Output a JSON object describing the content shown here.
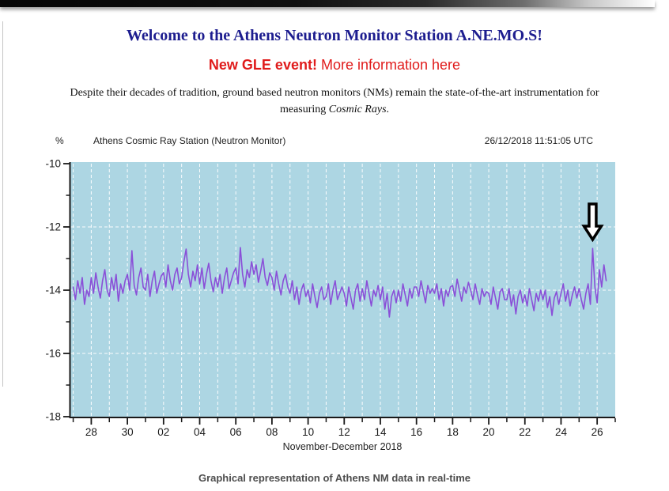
{
  "page": {
    "title": "Welcome to the Athens Neutron Monitor Station A.NE.MO.S!",
    "title_color": "#1d1d8f"
  },
  "gle": {
    "headline": "New GLE event!",
    "link_text": "More information here",
    "color": "#e01b1b"
  },
  "intro": {
    "line1": "Despite their decades of tradition, ground based neutron monitors (NMs) remain the state-of-the-art instrumentation for",
    "line2_prefix": "measuring ",
    "line2_italic": "Cosmic Rays",
    "line2_suffix": "."
  },
  "caption": "Graphical representation of Athens NM data in real-time",
  "chart_data": {
    "type": "line",
    "unit_label": "%",
    "station_label": "Athens Cosmic Ray Station (Neutron Monitor)",
    "timestamp": "26/12/2018 11:51:05 UTC",
    "xlabel": "November-December 2018",
    "ylim": [
      -18,
      -10
    ],
    "x_domain_days": [
      26.8,
      57.0
    ],
    "x_start_day": 27.0,
    "x_step_days": 0.125,
    "y_tick_values": [
      -10,
      -12,
      -14,
      -16,
      -18
    ],
    "y_tick_labels": [
      "-10",
      "-12",
      "-14",
      "-16",
      "-18"
    ],
    "y_minor_tick_values": [
      -11,
      -13,
      -15,
      -17
    ],
    "h_grid_values": [
      -12,
      -14,
      -16
    ],
    "x_tick_days": [
      28,
      30,
      32,
      34,
      36,
      38,
      40,
      42,
      44,
      46,
      48,
      50,
      52,
      54,
      56
    ],
    "x_tick_labels": [
      "28",
      "30",
      "02",
      "04",
      "06",
      "08",
      "10",
      "12",
      "14",
      "16",
      "18",
      "20",
      "22",
      "24",
      "26"
    ],
    "x_minor_tick_days": [
      27,
      29,
      31,
      33,
      35,
      37,
      39,
      41,
      43,
      45,
      47,
      49,
      51,
      53,
      55,
      57
    ],
    "v_grid_day_start": 27,
    "v_grid_day_end": 56,
    "plot_bg": "#ADD6E3",
    "grid_color": "#ffffff",
    "line_color": "#8A4FD8",
    "axis_color": "#1a1a1a",
    "values": [
      -13.9,
      -14.3,
      -13.7,
      -14.1,
      -13.6,
      -14.45,
      -14.0,
      -14.2,
      -13.6,
      -14.1,
      -13.45,
      -13.9,
      -14.25,
      -13.7,
      -13.35,
      -14.0,
      -14.2,
      -13.6,
      -14.0,
      -13.5,
      -14.35,
      -13.8,
      -14.1,
      -13.7,
      -13.5,
      -14.0,
      -12.75,
      -13.85,
      -14.15,
      -13.6,
      -13.3,
      -13.9,
      -14.0,
      -13.5,
      -14.2,
      -13.7,
      -13.4,
      -14.1,
      -13.8,
      -13.55,
      -13.45,
      -13.9,
      -13.2,
      -13.7,
      -14.0,
      -13.5,
      -13.3,
      -13.8,
      -13.6,
      -13.1,
      -12.7,
      -13.5,
      -13.9,
      -13.4,
      -13.7,
      -13.2,
      -13.8,
      -13.3,
      -13.95,
      -13.5,
      -13.15,
      -13.7,
      -14.05,
      -13.6,
      -13.9,
      -13.5,
      -14.1,
      -13.6,
      -13.3,
      -13.95,
      -13.7,
      -13.45,
      -13.3,
      -13.8,
      -12.65,
      -13.5,
      -13.9,
      -13.35,
      -13.6,
      -13.1,
      -13.5,
      -13.2,
      -13.75,
      -13.4,
      -13.0,
      -13.6,
      -13.85,
      -13.45,
      -13.6,
      -14.0,
      -13.4,
      -13.8,
      -14.15,
      -13.7,
      -13.5,
      -13.9,
      -14.1,
      -13.7,
      -14.3,
      -13.9,
      -14.45,
      -14.0,
      -13.8,
      -14.2,
      -14.0,
      -14.4,
      -13.8,
      -14.2,
      -14.55,
      -14.1,
      -13.9,
      -14.3,
      -14.2,
      -13.8,
      -14.45,
      -14.0,
      -13.7,
      -14.3,
      -14.1,
      -13.9,
      -14.1,
      -14.5,
      -13.9,
      -14.25,
      -14.6,
      -14.0,
      -13.8,
      -14.35,
      -13.95,
      -14.3,
      -13.7,
      -14.1,
      -14.5,
      -14.0,
      -14.2,
      -13.85,
      -14.3,
      -13.9,
      -14.6,
      -14.1,
      -14.85,
      -14.2,
      -14.0,
      -14.4,
      -14.0,
      -14.35,
      -13.8,
      -14.15,
      -14.5,
      -13.95,
      -14.25,
      -13.9,
      -13.9,
      -14.2,
      -13.7,
      -14.05,
      -14.4,
      -13.85,
      -14.1,
      -13.95,
      -14.1,
      -13.8,
      -14.3,
      -13.95,
      -14.5,
      -14.0,
      -14.2,
      -13.9,
      -13.85,
      -14.2,
      -13.65,
      -14.0,
      -14.35,
      -13.9,
      -14.1,
      -13.75,
      -14.0,
      -14.3,
      -13.8,
      -14.15,
      -14.45,
      -13.95,
      -14.2,
      -14.05,
      -14.1,
      -14.45,
      -13.9,
      -14.25,
      -14.6,
      -14.05,
      -13.95,
      -14.3,
      -14.3,
      -13.95,
      -14.5,
      -14.15,
      -14.75,
      -14.2,
      -14.0,
      -14.4,
      -14.15,
      -14.5,
      -13.95,
      -14.3,
      -14.65,
      -14.1,
      -14.35,
      -14.0,
      -14.3,
      -14.0,
      -14.55,
      -14.2,
      -14.8,
      -14.25,
      -14.05,
      -14.45,
      -14.1,
      -13.8,
      -14.35,
      -14.0,
      -14.5,
      -14.15,
      -13.9,
      -14.25,
      -13.95,
      -14.3,
      -14.6,
      -14.1,
      -13.8,
      -14.45,
      -12.68,
      -13.9,
      -14.4,
      -13.35,
      -13.9,
      -13.2,
      -13.7
    ],
    "annotation": {
      "type": "down-arrow",
      "points_to": "GLE spike near 26 December",
      "x_day": 55.75,
      "fill": "#ffffff",
      "stroke": "#000000"
    }
  }
}
